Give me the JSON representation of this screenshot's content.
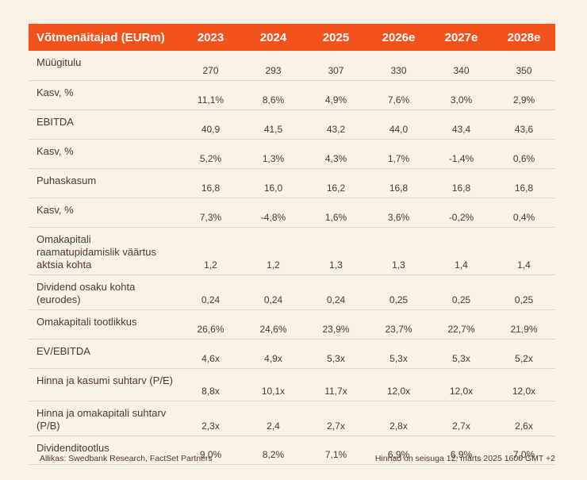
{
  "table": {
    "header": {
      "label": "Võtmenäitajad (EURm)",
      "years": [
        "2023",
        "2024",
        "2025",
        "2026e",
        "2027e",
        "2028e"
      ]
    },
    "rows": [
      {
        "label": "Müügitulu",
        "values": [
          "270",
          "293",
          "307",
          "330",
          "340",
          "350"
        ]
      },
      {
        "label": "Kasv, %",
        "values": [
          "11,1%",
          "8,6%",
          "4,9%",
          "7,6%",
          "3,0%",
          "2,9%"
        ]
      },
      {
        "label": "EBITDA",
        "values": [
          "40,9",
          "41,5",
          "43,2",
          "44,0",
          "43,4",
          "43,6"
        ]
      },
      {
        "label": "Kasv, %",
        "values": [
          "5,2%",
          "1,3%",
          "4,3%",
          "1,7%",
          "-1,4%",
          "0,6%"
        ]
      },
      {
        "label": "Puhaskasum",
        "values": [
          "16,8",
          "16,0",
          "16,2",
          "16,8",
          "16,8",
          "16,8"
        ]
      },
      {
        "label": "Kasv, %",
        "values": [
          "7,3%",
          "-4,8%",
          "1,6%",
          "3,6%",
          "-0,2%",
          "0,4%"
        ]
      },
      {
        "label": "Omakapitali raamatupidamislik väärtus aktsia kohta",
        "values": [
          "1,2",
          "1,2",
          "1,3",
          "1,3",
          "1,4",
          "1,4"
        ]
      },
      {
        "label": "Dividend osaku kohta (eurodes)",
        "values": [
          "0,24",
          "0,24",
          "0,24",
          "0,25",
          "0,25",
          "0,25"
        ]
      },
      {
        "label": "Omakapitali tootlikkus",
        "values": [
          "26,6%",
          "24,6%",
          "23,9%",
          "23,7%",
          "22,7%",
          "21,9%"
        ]
      },
      {
        "label": "EV/EBITDA",
        "values": [
          "4,6x",
          "4,9x",
          "5,3x",
          "5,3x",
          "5,3x",
          "5,2x"
        ]
      },
      {
        "label": "Hinna ja kasumi suhtarv (P/E)",
        "values": [
          "8,8x",
          "10,1x",
          "11,7x",
          "12,0x",
          "12,0x",
          "12,0x"
        ]
      },
      {
        "label": "Hinna ja omakapitali suhtarv (P/B)",
        "values": [
          "2,3x",
          "2,4",
          "2,7x",
          "2,8x",
          "2,7x",
          "2,6x"
        ]
      },
      {
        "label": "Dividenditootlus",
        "values": [
          "9,0%",
          "8,2%",
          "7,1%",
          "6,9%",
          "6,9%",
          "7,0%"
        ]
      }
    ]
  },
  "footer": {
    "source": "Allikas: Swedbank Research, FactSet Partners",
    "price_note": "Hinnad on seisuga 12. märts 2025 1600 GMT +2"
  },
  "colors": {
    "background": "#FAF1E7",
    "header_accent": "#F4521C",
    "header_text": "#FFFFFF",
    "body_text": "#4F362E",
    "row_separator": "#DCD3C8"
  },
  "chart_data": {
    "type": "table",
    "title": "Võtmenäitajad (EURm)",
    "categories": [
      "2023",
      "2024",
      "2025",
      "2026e",
      "2027e",
      "2028e"
    ],
    "series": [
      {
        "name": "Müügitulu",
        "values": [
          270,
          293,
          307,
          330,
          340,
          350
        ]
      },
      {
        "name": "Kasv, % (müügitulu)",
        "values": [
          11.1,
          8.6,
          4.9,
          7.6,
          3.0,
          2.9
        ]
      },
      {
        "name": "EBITDA",
        "values": [
          40.9,
          41.5,
          43.2,
          44.0,
          43.4,
          43.6
        ]
      },
      {
        "name": "Kasv, % (EBITDA)",
        "values": [
          5.2,
          1.3,
          4.3,
          1.7,
          -1.4,
          0.6
        ]
      },
      {
        "name": "Puhaskasum",
        "values": [
          16.8,
          16.0,
          16.2,
          16.8,
          16.8,
          16.8
        ]
      },
      {
        "name": "Kasv, % (puhaskasum)",
        "values": [
          7.3,
          -4.8,
          1.6,
          3.6,
          -0.2,
          0.4
        ]
      },
      {
        "name": "Omakapitali raamatupidamislik väärtus aktsia kohta",
        "values": [
          1.2,
          1.2,
          1.3,
          1.3,
          1.4,
          1.4
        ]
      },
      {
        "name": "Dividend osaku kohta (eurodes)",
        "values": [
          0.24,
          0.24,
          0.24,
          0.25,
          0.25,
          0.25
        ]
      },
      {
        "name": "Omakapitali tootlikkus (%)",
        "values": [
          26.6,
          24.6,
          23.9,
          23.7,
          22.7,
          21.9
        ]
      },
      {
        "name": "EV/EBITDA (x)",
        "values": [
          4.6,
          4.9,
          5.3,
          5.3,
          5.3,
          5.2
        ]
      },
      {
        "name": "Hinna ja kasumi suhtarv P/E (x)",
        "values": [
          8.8,
          10.1,
          11.7,
          12.0,
          12.0,
          12.0
        ]
      },
      {
        "name": "Hinna ja omakapitali suhtarv P/B (x)",
        "values": [
          2.3,
          2.4,
          2.7,
          2.8,
          2.7,
          2.6
        ]
      },
      {
        "name": "Dividenditootlus (%)",
        "values": [
          9.0,
          8.2,
          7.1,
          6.9,
          6.9,
          7.0
        ]
      }
    ]
  }
}
